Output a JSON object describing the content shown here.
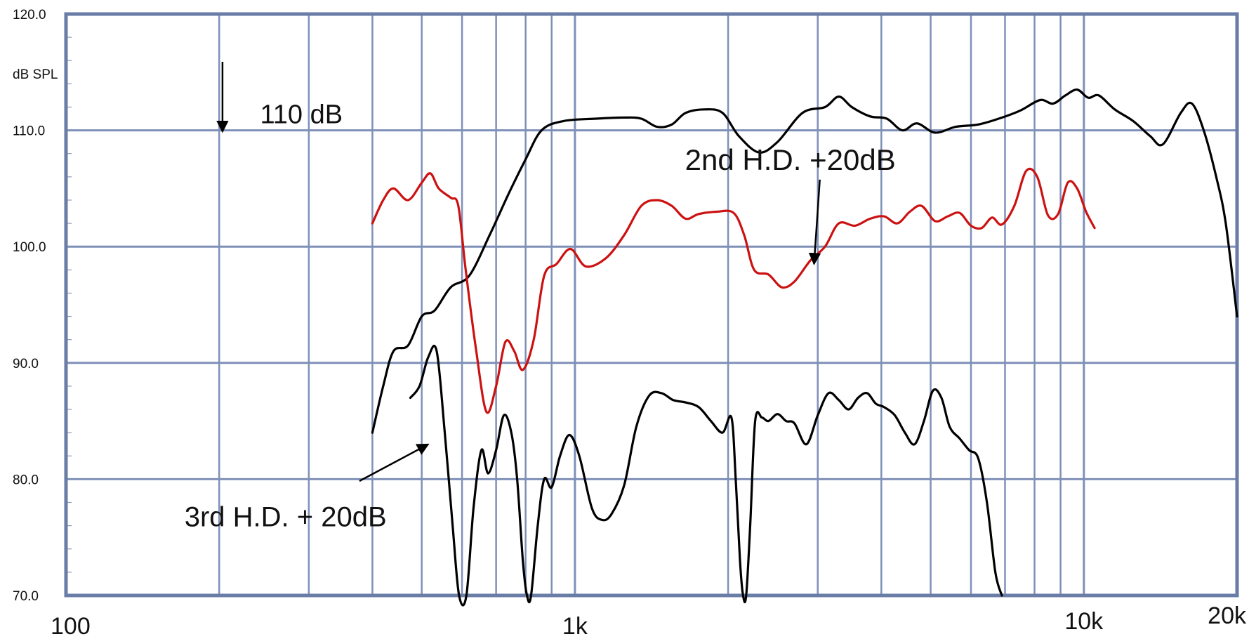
{
  "chart_data": {
    "type": "line",
    "title": "",
    "xlabel": "",
    "ylabel": "dB SPL",
    "x_scale": "log",
    "xlim": [
      100,
      20000
    ],
    "ylim": [
      70,
      120
    ],
    "grid": true,
    "legend": "none",
    "y_ticks": [
      {
        "value": 70,
        "label": "70.0"
      },
      {
        "value": 80,
        "label": "80.0"
      },
      {
        "value": 90,
        "label": "90.0"
      },
      {
        "value": 100,
        "label": "100.0"
      },
      {
        "value": 110,
        "label": "110.0"
      },
      {
        "value": 120,
        "label": "120.0"
      }
    ],
    "x_ticks": [
      {
        "value": 100,
        "label": "100"
      },
      {
        "value": 1000,
        "label": "1k"
      },
      {
        "value": 10000,
        "label": "10k"
      },
      {
        "value": 20000,
        "label": "20k"
      }
    ],
    "grid_lines_x": [
      200,
      300,
      400,
      500,
      600,
      700,
      800,
      900,
      2000,
      3000,
      4000,
      5000,
      6000,
      7000,
      8000,
      9000
    ],
    "series": [
      {
        "color": "#000000",
        "points": [
          [
            400,
            84
          ],
          [
            420,
            88
          ],
          [
            440,
            91
          ],
          [
            470,
            91.5
          ],
          [
            500,
            94
          ],
          [
            530,
            94.5
          ],
          [
            570,
            96.5
          ],
          [
            620,
            97.5
          ],
          [
            680,
            101
          ],
          [
            740,
            104.5
          ],
          [
            800,
            107.5
          ],
          [
            860,
            110
          ],
          [
            950,
            110.8
          ],
          [
            1100,
            111
          ],
          [
            1250,
            111.1
          ],
          [
            1350,
            111
          ],
          [
            1450,
            110.3
          ],
          [
            1550,
            110.5
          ],
          [
            1650,
            111.5
          ],
          [
            1800,
            111.8
          ],
          [
            1950,
            111.5
          ],
          [
            2100,
            109.5
          ],
          [
            2300,
            108.1
          ],
          [
            2500,
            109
          ],
          [
            2800,
            111.5
          ],
          [
            3100,
            112
          ],
          [
            3300,
            112.9
          ],
          [
            3500,
            112
          ],
          [
            3800,
            111.2
          ],
          [
            4100,
            111
          ],
          [
            4400,
            110
          ],
          [
            4700,
            110.6
          ],
          [
            5100,
            109.8
          ],
          [
            5600,
            110.3
          ],
          [
            6200,
            110.5
          ],
          [
            6800,
            111
          ],
          [
            7500,
            111.7
          ],
          [
            8200,
            112.6
          ],
          [
            8700,
            112.3
          ],
          [
            9200,
            113
          ],
          [
            9700,
            113.5
          ],
          [
            10200,
            112.8
          ],
          [
            10700,
            113
          ],
          [
            11500,
            111.8
          ],
          [
            12500,
            110.8
          ],
          [
            13500,
            109.5
          ],
          [
            14300,
            108.8
          ],
          [
            15500,
            111.5
          ],
          [
            16300,
            112.3
          ],
          [
            17200,
            110
          ],
          [
            18200,
            106
          ],
          [
            19000,
            102
          ],
          [
            20000,
            94
          ]
        ]
      },
      {
        "color": "#cc1111",
        "points": [
          [
            400,
            102
          ],
          [
            420,
            104
          ],
          [
            440,
            105
          ],
          [
            470,
            104
          ],
          [
            500,
            105.5
          ],
          [
            520,
            106.3
          ],
          [
            540,
            105
          ],
          [
            570,
            104.2
          ],
          [
            590,
            103.5
          ],
          [
            610,
            98
          ],
          [
            640,
            91
          ],
          [
            670,
            85.8
          ],
          [
            700,
            88
          ],
          [
            730,
            91.8
          ],
          [
            760,
            91
          ],
          [
            790,
            89.4
          ],
          [
            830,
            92
          ],
          [
            870,
            97.5
          ],
          [
            920,
            98.5
          ],
          [
            980,
            99.8
          ],
          [
            1050,
            98.3
          ],
          [
            1150,
            99
          ],
          [
            1250,
            101
          ],
          [
            1350,
            103.5
          ],
          [
            1450,
            104
          ],
          [
            1550,
            103.5
          ],
          [
            1650,
            102.4
          ],
          [
            1750,
            102.8
          ],
          [
            1900,
            103
          ],
          [
            2050,
            102.9
          ],
          [
            2150,
            101
          ],
          [
            2250,
            98
          ],
          [
            2400,
            97.6
          ],
          [
            2550,
            96.5
          ],
          [
            2700,
            97
          ],
          [
            2900,
            98.8
          ],
          [
            3100,
            100
          ],
          [
            3300,
            102
          ],
          [
            3550,
            101.8
          ],
          [
            3800,
            102.4
          ],
          [
            4050,
            102.6
          ],
          [
            4300,
            102
          ],
          [
            4550,
            103
          ],
          [
            4800,
            103.5
          ],
          [
            5100,
            102.2
          ],
          [
            5400,
            102.6
          ],
          [
            5700,
            102.9
          ],
          [
            6000,
            101.8
          ],
          [
            6300,
            101.6
          ],
          [
            6600,
            102.5
          ],
          [
            6900,
            101.9
          ],
          [
            7300,
            103.5
          ],
          [
            7700,
            106.5
          ],
          [
            8100,
            106
          ],
          [
            8500,
            102.7
          ],
          [
            8900,
            102.8
          ],
          [
            9300,
            105.5
          ],
          [
            9700,
            105
          ],
          [
            10100,
            103
          ],
          [
            10500,
            101.6
          ]
        ]
      },
      {
        "color": "#000000",
        "points": [
          [
            475,
            87
          ],
          [
            495,
            88
          ],
          [
            515,
            90.5
          ],
          [
            535,
            91
          ],
          [
            555,
            84
          ],
          [
            575,
            76
          ],
          [
            592,
            70
          ],
          [
            612,
            70
          ],
          [
            632,
            77.5
          ],
          [
            655,
            82.5
          ],
          [
            675,
            80.5
          ],
          [
            700,
            82.5
          ],
          [
            725,
            85.5
          ],
          [
            750,
            84
          ],
          [
            770,
            80
          ],
          [
            790,
            73
          ],
          [
            805,
            70
          ],
          [
            820,
            70
          ],
          [
            845,
            76
          ],
          [
            870,
            80
          ],
          [
            900,
            79.3
          ],
          [
            935,
            82
          ],
          [
            975,
            83.8
          ],
          [
            1020,
            82
          ],
          [
            1080,
            77.5
          ],
          [
            1130,
            76.5
          ],
          [
            1180,
            77
          ],
          [
            1250,
            79.5
          ],
          [
            1320,
            84.5
          ],
          [
            1400,
            87.2
          ],
          [
            1480,
            87.4
          ],
          [
            1560,
            86.8
          ],
          [
            1650,
            86.6
          ],
          [
            1750,
            86.2
          ],
          [
            1850,
            85
          ],
          [
            1950,
            84
          ],
          [
            2030,
            85.3
          ],
          [
            2070,
            80
          ],
          [
            2110,
            73
          ],
          [
            2140,
            70
          ],
          [
            2170,
            70
          ],
          [
            2210,
            76
          ],
          [
            2260,
            85
          ],
          [
            2330,
            85.3
          ],
          [
            2400,
            85
          ],
          [
            2500,
            85.6
          ],
          [
            2600,
            85
          ],
          [
            2700,
            84.8
          ],
          [
            2850,
            83
          ],
          [
            3000,
            85.5
          ],
          [
            3150,
            87.4
          ],
          [
            3300,
            86.8
          ],
          [
            3450,
            86
          ],
          [
            3600,
            87
          ],
          [
            3750,
            87.4
          ],
          [
            3900,
            86.5
          ],
          [
            4050,
            86.2
          ],
          [
            4250,
            85.5
          ],
          [
            4450,
            84
          ],
          [
            4650,
            83
          ],
          [
            4850,
            85
          ],
          [
            5050,
            87.6
          ],
          [
            5250,
            87
          ],
          [
            5450,
            84.5
          ],
          [
            5700,
            83.5
          ],
          [
            5950,
            82.5
          ],
          [
            6200,
            81.8
          ],
          [
            6450,
            78
          ],
          [
            6700,
            72
          ],
          [
            6900,
            70
          ]
        ]
      }
    ],
    "annotations": [
      {
        "text": "110 dB",
        "x": 250,
        "y": 110,
        "arrow_to": [
          203,
          110
        ]
      },
      {
        "text": "2nd H.D. +20dB",
        "x": 2650,
        "y": 106,
        "arrow_to": [
          2950,
          98.5
        ]
      },
      {
        "text": "3rd H.D. + 20dB",
        "x": 270,
        "y": 76.8,
        "arrow_to": [
          515,
          83
        ]
      }
    ]
  }
}
